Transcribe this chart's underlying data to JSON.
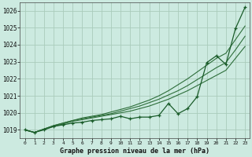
{
  "background_color": "#cceae0",
  "plot_bg_color": "#cceae0",
  "grid_color": "#aaccbb",
  "line_color_dark": "#1a5c2a",
  "line_color_mid": "#2d6e3a",
  "xlabel": "Graphe pression niveau de la mer (hPa)",
  "ylim": [
    1018.5,
    1026.5
  ],
  "xlim": [
    -0.5,
    23.5
  ],
  "yticks": [
    1019,
    1020,
    1021,
    1022,
    1023,
    1024,
    1025,
    1026
  ],
  "xticks": [
    0,
    1,
    2,
    3,
    4,
    5,
    6,
    7,
    8,
    9,
    10,
    11,
    12,
    13,
    14,
    15,
    16,
    17,
    18,
    19,
    20,
    21,
    22,
    23
  ],
  "series_main": [
    1019.0,
    1018.85,
    1019.0,
    1019.2,
    1019.3,
    1019.4,
    1019.45,
    1019.55,
    1019.6,
    1019.65,
    1019.8,
    1019.65,
    1019.75,
    1019.75,
    1019.85,
    1020.55,
    1019.95,
    1020.25,
    1020.95,
    1022.95,
    1023.35,
    1022.85,
    1024.95,
    1026.2
  ],
  "series_line1": [
    1019.0,
    1018.85,
    1019.05,
    1019.25,
    1019.4,
    1019.55,
    1019.7,
    1019.8,
    1019.9,
    1020.05,
    1020.2,
    1020.35,
    1020.55,
    1020.75,
    1021.0,
    1021.3,
    1021.65,
    1022.0,
    1022.4,
    1022.8,
    1023.2,
    1023.5,
    1024.3,
    1025.1
  ],
  "series_line2": [
    1019.0,
    1018.85,
    1019.05,
    1019.25,
    1019.4,
    1019.55,
    1019.65,
    1019.75,
    1019.85,
    1019.95,
    1020.1,
    1020.25,
    1020.4,
    1020.6,
    1020.8,
    1021.05,
    1021.3,
    1021.6,
    1021.95,
    1022.3,
    1022.65,
    1022.95,
    1023.7,
    1024.5
  ],
  "series_line3": [
    1019.0,
    1018.85,
    1019.05,
    1019.2,
    1019.35,
    1019.5,
    1019.6,
    1019.7,
    1019.8,
    1019.9,
    1020.0,
    1020.1,
    1020.25,
    1020.4,
    1020.6,
    1020.8,
    1021.05,
    1021.3,
    1021.6,
    1021.9,
    1022.2,
    1022.5,
    1023.2,
    1023.9
  ]
}
